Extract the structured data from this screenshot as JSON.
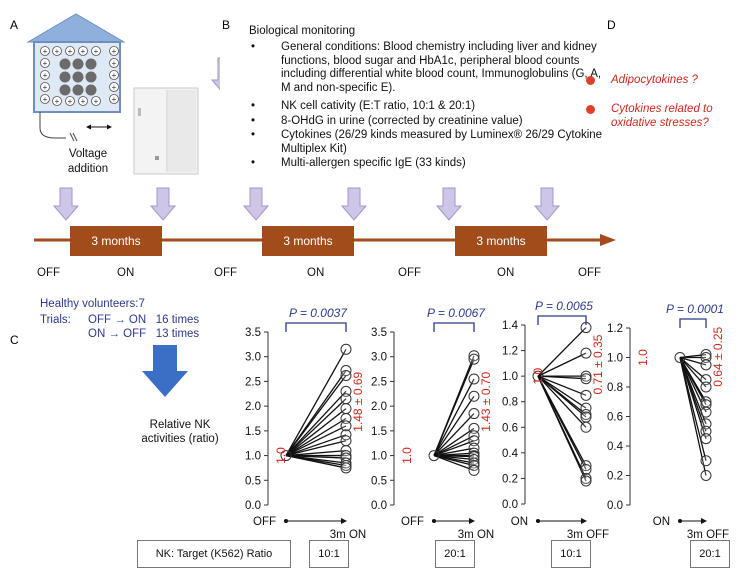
{
  "panels": {
    "a": "A",
    "b": "B",
    "c": "C",
    "d": "D"
  },
  "device": {
    "caption_line1": "Voltage",
    "caption_line2": "addition"
  },
  "monitoring": {
    "title": "Biological monitoring",
    "bullet": "•",
    "items": [
      "General conditions: Blood chemistry including liver and kidney functions, blood sugar and HbA1c, peripheral blood counts including differential white blood count, Immunoglobulins (G, A, M and non-specific E).",
      "NK cell cativity (E:T ratio, 10:1 & 20:1)",
      "8-OHdG in urine (corrected by creatinine value)",
      "Cytokines (26/29 kinds measured by Luminex® 26/29 Cytokine Multiplex Kit)",
      "Multi-allergen specific IgE (33 kinds)"
    ]
  },
  "hypotheses": [
    "Adipocytokines ?",
    "Cytokines related to oxidative stresses?"
  ],
  "timeline": {
    "phases": [
      "3 months",
      "3 months",
      "3 months"
    ],
    "states": [
      "OFF",
      "ON",
      "OFF",
      "ON",
      "OFF",
      "ON",
      "OFF"
    ]
  },
  "study": {
    "volunteers": "Healthy volunteers:7",
    "trials_label": "Trials:",
    "trial1": "OFF → ON   16 times",
    "trial2": "ON → OFF   13 times"
  },
  "nk_label_line1": "Relative NK",
  "nk_label_line2": "activities (ratio)",
  "bottom": {
    "target_label": "NK: Target (K562) Ratio",
    "ratios": [
      "10:1",
      "20:1",
      "10:1",
      "20:1"
    ]
  },
  "colors": {
    "accent_red": "#d0281f",
    "stats_blue": "#2c3a8c",
    "timeline_brown": "#a24c1c",
    "arrow_fill": "#cfc5e6",
    "big_arrow": "#3b6fc6"
  },
  "chart_data": [
    {
      "type": "line",
      "p_value": "P = 0.0037",
      "x": [
        "OFF",
        "3m ON"
      ],
      "baseline_label": "1.0",
      "summary": "1.48 ± 0.69",
      "ylim": [
        0,
        3.5
      ],
      "yticks": [
        "0.0",
        "0.5",
        "1.0",
        "1.5",
        "2.0",
        "2.5",
        "3.0",
        "3.5"
      ],
      "end_values": [
        3.15,
        2.72,
        2.62,
        2.3,
        2.15,
        1.95,
        1.75,
        1.6,
        1.42,
        1.3,
        1.1,
        1.0,
        0.95,
        0.85,
        0.8,
        0.75
      ]
    },
    {
      "type": "line",
      "p_value": "P = 0.0067",
      "x": [
        "OFF",
        "3m ON"
      ],
      "baseline_label": "1.0",
      "summary": "1.43 ± 0.70",
      "ylim": [
        0,
        3.5
      ],
      "yticks": [
        "0.0",
        "0.5",
        "1.0",
        "1.5",
        "2.0",
        "2.5",
        "3.0",
        "3.5"
      ],
      "end_values": [
        3.02,
        2.95,
        2.55,
        2.2,
        1.85,
        1.55,
        1.4,
        1.3,
        1.15,
        1.05,
        1.0,
        0.98,
        0.92,
        0.85,
        0.8,
        0.7
      ]
    },
    {
      "type": "line",
      "p_value": "P = 0.0065",
      "x": [
        "ON",
        "3m OFF"
      ],
      "baseline_label": "1.0",
      "summary": "0.71 ± 0.35",
      "ylim": [
        0,
        1.4
      ],
      "yticks": [
        "0.0",
        "0.2",
        "0.4",
        "0.6",
        "0.8",
        "1.0",
        "1.2",
        "1.4"
      ],
      "end_values": [
        1.38,
        1.18,
        1.0,
        0.98,
        0.85,
        0.75,
        0.7,
        0.68,
        0.6,
        0.3,
        0.27,
        0.2,
        0.18
      ]
    },
    {
      "type": "line",
      "p_value": "P = 0.0001",
      "x": [
        "ON",
        "3m OFF"
      ],
      "baseline_label": "1.0",
      "summary": "0.64 ± 0.25",
      "ylim": [
        0,
        1.2
      ],
      "yticks": [
        "0.0",
        "0.2",
        "0.4",
        "0.6",
        "0.8",
        "1.0",
        "1.2"
      ],
      "end_values": [
        1.02,
        1.0,
        0.95,
        0.85,
        0.8,
        0.7,
        0.68,
        0.63,
        0.55,
        0.5,
        0.45,
        0.3,
        0.2
      ]
    }
  ]
}
